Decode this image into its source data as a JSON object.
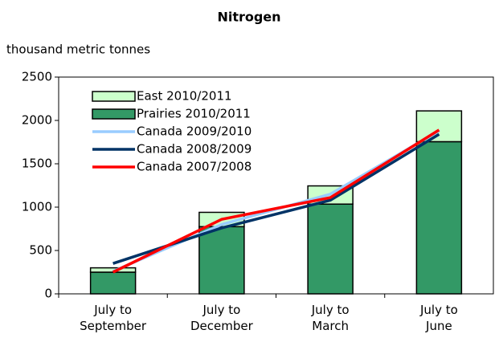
{
  "chart_data": {
    "type": "bar",
    "title": "Nitrogen",
    "y_label": "thousand metric tonnes",
    "categories": [
      "July to September",
      "July to December",
      "July to March",
      "July to June"
    ],
    "series": [
      {
        "name": "East 2010/2011",
        "type": "bar",
        "color": "#ccffcc",
        "values": [
          50,
          165,
          210,
          355
        ]
      },
      {
        "name": "Prairies 2010/2011",
        "type": "bar",
        "color": "#339966",
        "values": [
          250,
          775,
          1035,
          1755
        ]
      },
      {
        "name": "Canada 2009/2010",
        "type": "line",
        "color": "#99ccff",
        "values": [
          260,
          800,
          1150,
          1880
        ]
      },
      {
        "name": "Canada 2008/2009",
        "type": "line",
        "color": "#003366",
        "values": [
          350,
          760,
          1080,
          1840
        ]
      },
      {
        "name": "Canada 2007/2008",
        "type": "line",
        "color": "#ff0000",
        "values": [
          250,
          860,
          1110,
          1890
        ]
      }
    ],
    "ylim": [
      0,
      2500
    ],
    "yticks": [
      0,
      500,
      1000,
      1500,
      2000,
      2500
    ],
    "grid": false,
    "legend": "upper left"
  }
}
